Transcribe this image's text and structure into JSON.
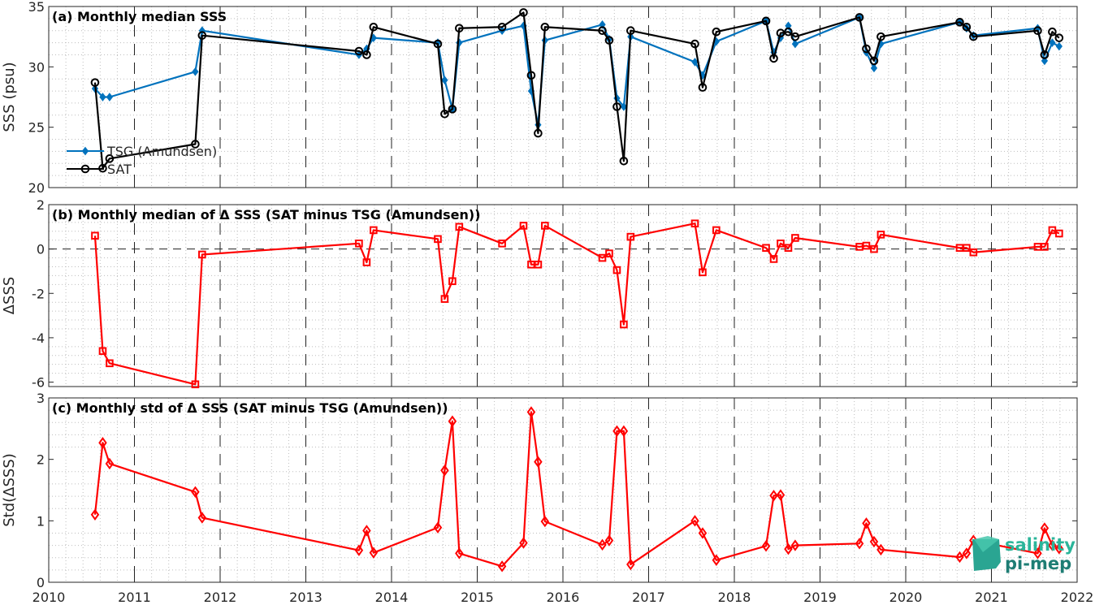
{
  "chart_data": [
    {
      "type": "line",
      "title": "(a) Monthly median SSS",
      "ylabel": "SSS (psu)",
      "xlim": [
        2010,
        2022
      ],
      "ylim": [
        20,
        35
      ],
      "yticks": [
        20,
        25,
        30,
        35
      ],
      "grid": "minor-dotted",
      "legend_position": "bottom-left",
      "series": [
        {
          "name": "TSG (Amundsen)",
          "color": "#0072bd",
          "marker": "filled-diamond",
          "x": [
            2010.54,
            2010.63,
            2010.71,
            2011.71,
            2011.79,
            2013.62,
            2013.71,
            2013.79,
            2014.54,
            2014.62,
            2014.71,
            2014.79,
            2015.29,
            2015.54,
            2015.63,
            2015.71,
            2015.79,
            2016.46,
            2016.54,
            2016.63,
            2016.71,
            2016.79,
            2017.54,
            2017.63,
            2017.79,
            2018.37,
            2018.46,
            2018.54,
            2018.63,
            2018.71,
            2019.46,
            2019.54,
            2019.63,
            2019.71,
            2020.63,
            2020.71,
            2020.79,
            2021.54,
            2021.62,
            2021.71,
            2021.79
          ],
          "y": [
            28.2,
            27.5,
            27.5,
            29.6,
            33.0,
            31.0,
            31.5,
            32.4,
            32.0,
            28.9,
            26.5,
            32.0,
            33.0,
            33.4,
            28.0,
            25.2,
            32.2,
            33.5,
            32.3,
            27.4,
            26.7,
            32.5,
            30.4,
            29.3,
            32.1,
            33.8,
            31.2,
            32.4,
            33.4,
            31.9,
            34.1,
            31.2,
            29.9,
            31.9,
            33.7,
            33.2,
            32.6,
            33.2,
            30.5,
            32.0,
            31.7
          ]
        },
        {
          "name": "SAT",
          "color": "#000000",
          "marker": "open-circle",
          "x": [
            2010.54,
            2010.63,
            2010.71,
            2011.71,
            2011.79,
            2013.62,
            2013.71,
            2013.79,
            2014.54,
            2014.62,
            2014.71,
            2014.79,
            2015.29,
            2015.54,
            2015.63,
            2015.71,
            2015.79,
            2016.46,
            2016.54,
            2016.63,
            2016.71,
            2016.79,
            2017.54,
            2017.63,
            2017.79,
            2018.37,
            2018.46,
            2018.54,
            2018.63,
            2018.71,
            2019.46,
            2019.54,
            2019.63,
            2019.71,
            2020.63,
            2020.71,
            2020.79,
            2021.54,
            2021.62,
            2021.71,
            2021.79
          ],
          "y": [
            28.7,
            21.6,
            22.4,
            23.6,
            32.6,
            31.3,
            31.0,
            33.3,
            31.9,
            26.1,
            26.5,
            33.2,
            33.3,
            34.5,
            29.3,
            24.5,
            33.3,
            33.0,
            32.2,
            26.7,
            22.2,
            33.0,
            31.9,
            28.3,
            32.9,
            33.8,
            30.7,
            32.8,
            32.9,
            32.5,
            34.1,
            31.5,
            30.5,
            32.5,
            33.7,
            33.3,
            32.5,
            33.0,
            31.0,
            32.9,
            32.4
          ]
        }
      ]
    },
    {
      "type": "line",
      "title": "(b) Monthly median of Δ SSS (SAT minus TSG (Amundsen))",
      "ylabel": "ΔSSS",
      "xlim": [
        2010,
        2022
      ],
      "ylim": [
        -6.2,
        2
      ],
      "yticks": [
        -6,
        -4,
        -2,
        0,
        2
      ],
      "zero_line": "dashed",
      "series": [
        {
          "name": "",
          "color": "#ff0000",
          "marker": "open-square",
          "x": [
            2010.54,
            2010.63,
            2010.71,
            2011.71,
            2011.79,
            2013.62,
            2013.71,
            2013.79,
            2014.54,
            2014.62,
            2014.71,
            2014.79,
            2015.29,
            2015.54,
            2015.63,
            2015.71,
            2015.79,
            2016.46,
            2016.54,
            2016.63,
            2016.71,
            2016.79,
            2017.54,
            2017.63,
            2017.79,
            2018.37,
            2018.46,
            2018.54,
            2018.63,
            2018.71,
            2019.46,
            2019.54,
            2019.63,
            2019.71,
            2020.63,
            2020.71,
            2020.79,
            2021.54,
            2021.62,
            2021.71,
            2021.79
          ],
          "y": [
            0.6,
            -4.6,
            -5.15,
            -6.1,
            -0.25,
            0.25,
            -0.6,
            0.85,
            0.45,
            -2.25,
            -1.45,
            1.0,
            0.25,
            1.05,
            -0.7,
            -0.7,
            1.05,
            -0.4,
            -0.2,
            -0.95,
            -3.4,
            0.55,
            1.15,
            -1.05,
            0.85,
            0.05,
            -0.45,
            0.25,
            0.05,
            0.5,
            0.1,
            0.15,
            0.0,
            0.65,
            0.05,
            0.05,
            -0.15,
            0.1,
            0.1,
            0.85,
            0.7
          ]
        }
      ]
    },
    {
      "type": "line",
      "title": "(c) Monthly std of Δ SSS (SAT minus TSG (Amundsen))",
      "ylabel": "Std(ΔSSS)",
      "xlim": [
        2010,
        2022
      ],
      "ylim": [
        0,
        3
      ],
      "yticks": [
        0,
        1,
        2,
        3
      ],
      "series": [
        {
          "name": "",
          "color": "#ff0000",
          "marker": "open-diamond",
          "x": [
            2010.54,
            2010.63,
            2010.71,
            2011.71,
            2011.79,
            2013.62,
            2013.71,
            2013.79,
            2014.54,
            2014.62,
            2014.71,
            2014.79,
            2015.29,
            2015.54,
            2015.63,
            2015.71,
            2015.79,
            2016.46,
            2016.54,
            2016.63,
            2016.71,
            2016.79,
            2017.54,
            2017.63,
            2017.79,
            2018.37,
            2018.46,
            2018.54,
            2018.63,
            2018.71,
            2019.46,
            2019.54,
            2019.63,
            2019.71,
            2020.63,
            2020.71,
            2020.79,
            2021.54,
            2021.62,
            2021.71,
            2021.79
          ],
          "y": [
            1.1,
            2.27,
            1.93,
            1.47,
            1.05,
            0.52,
            0.84,
            0.48,
            0.89,
            1.82,
            2.62,
            0.47,
            0.26,
            0.64,
            2.77,
            1.96,
            0.99,
            0.61,
            0.68,
            2.46,
            2.46,
            0.29,
            1.0,
            0.8,
            0.36,
            0.59,
            1.41,
            1.42,
            0.54,
            0.6,
            0.63,
            0.96,
            0.66,
            0.53,
            0.41,
            0.47,
            0.68,
            0.47,
            0.88,
            0.6,
            0.55
          ]
        }
      ]
    }
  ],
  "xaxis": {
    "xlim": [
      2010,
      2022
    ],
    "ticks": [
      "2010",
      "2011",
      "2012",
      "2013",
      "2014",
      "2015",
      "2016",
      "2017",
      "2018",
      "2019",
      "2020",
      "2021",
      "2022"
    ]
  },
  "logo": {
    "line1": "salinity",
    "line2": "pi-mep"
  }
}
